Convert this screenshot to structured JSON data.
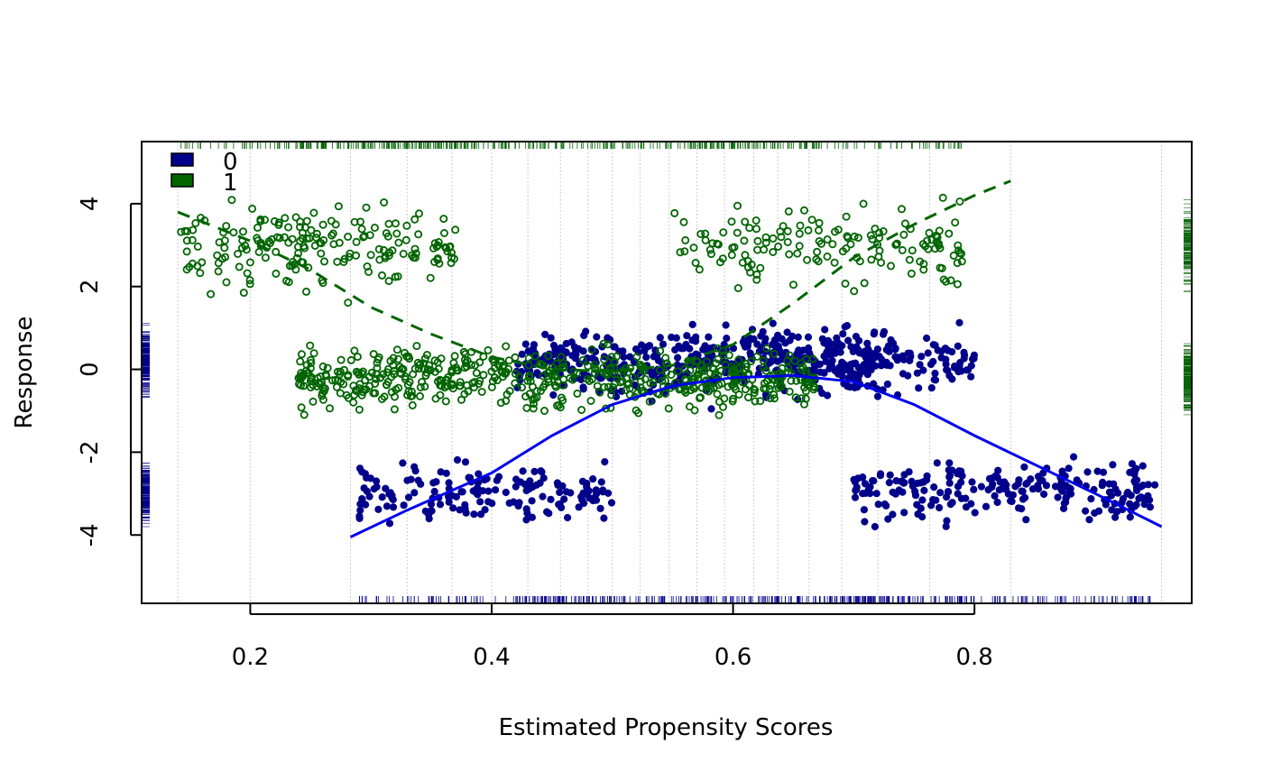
{
  "chart_data": {
    "type": "scatter",
    "title": "",
    "xlabel": "Estimated Propensity Scores",
    "ylabel": "Response",
    "xlim": [
      0.11,
      0.98
    ],
    "ylim": [
      -5.65,
      5.5
    ],
    "xticks": [
      0.2,
      0.4,
      0.6,
      0.8
    ],
    "xtick_labels": [
      "0.2",
      "0.4",
      "0.6",
      "0.8"
    ],
    "yticks": [
      -4,
      -2,
      0,
      2,
      4
    ],
    "ytick_labels": [
      "-4",
      "-2",
      "0",
      "2",
      "4"
    ],
    "legend": {
      "placement": "top-left",
      "entries": [
        "0",
        "1"
      ]
    },
    "grid": "dotted vertical lines at selected propensity values",
    "vertical_gridlines": [
      0.14,
      0.2,
      0.283,
      0.33,
      0.367,
      0.4,
      0.43,
      0.457,
      0.48,
      0.5,
      0.523,
      0.547,
      0.57,
      0.593,
      0.617,
      0.637,
      0.663,
      0.69,
      0.72,
      0.763,
      0.83,
      0.955
    ],
    "colors": {
      "group0": "#00008B",
      "group1": "#006400",
      "fit0": "#0000EE",
      "axis": "#000000",
      "grid": "#BEBEBE"
    },
    "series": [
      {
        "name": "0",
        "marker": "filled-circle",
        "clusters": [
          {
            "x_range": [
              0.29,
              0.5
            ],
            "y_mean": -3.0,
            "y_sd": 0.6,
            "n": 160
          },
          {
            "x_range": [
              0.42,
              0.72
            ],
            "y_mean": 0.2,
            "y_sd": 0.65,
            "n": 430
          },
          {
            "x_range": [
              0.68,
              0.8
            ],
            "y_mean": 0.2,
            "y_sd": 0.6,
            "n": 110
          },
          {
            "x_range": [
              0.7,
              0.95
            ],
            "y_mean": -2.9,
            "y_sd": 0.6,
            "n": 230
          }
        ],
        "fit_line": {
          "style": "solid",
          "x": [
            0.283,
            0.33,
            0.4,
            0.45,
            0.5,
            0.55,
            0.6,
            0.65,
            0.7,
            0.75,
            0.8,
            0.85,
            0.9,
            0.955
          ],
          "y": [
            -4.05,
            -3.4,
            -2.5,
            -1.6,
            -0.85,
            -0.4,
            -0.2,
            -0.15,
            -0.3,
            -0.85,
            -1.6,
            -2.3,
            -3.0,
            -3.8
          ]
        }
      },
      {
        "name": "1",
        "marker": "open-circle",
        "clusters": [
          {
            "x_range": [
              0.14,
              0.37
            ],
            "y_mean": 3.0,
            "y_sd": 0.75,
            "n": 190
          },
          {
            "x_range": [
              0.24,
              0.67
            ],
            "y_mean": -0.2,
            "y_sd": 0.6,
            "n": 560
          },
          {
            "x_range": [
              0.55,
              0.79
            ],
            "y_mean": 3.0,
            "y_sd": 0.75,
            "n": 150
          }
        ],
        "fit_line": {
          "style": "dashed",
          "x": [
            0.14,
            0.2,
            0.25,
            0.3,
            0.35,
            0.4,
            0.45,
            0.5,
            0.55,
            0.6,
            0.65,
            0.7,
            0.75,
            0.8,
            0.83
          ],
          "y": [
            3.8,
            3.1,
            2.4,
            1.5,
            0.85,
            0.3,
            0.0,
            -0.05,
            0.1,
            0.6,
            1.6,
            2.7,
            3.5,
            4.2,
            4.55
          ]
        }
      }
    ]
  }
}
